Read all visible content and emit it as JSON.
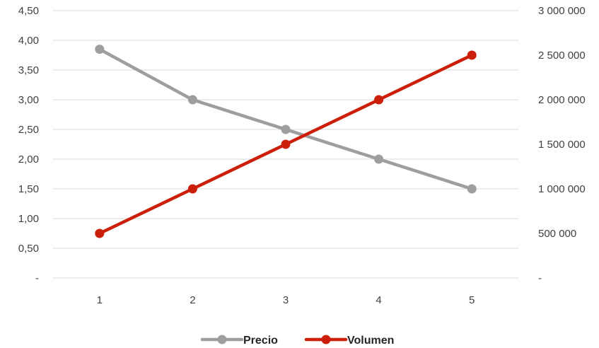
{
  "chart_data": {
    "type": "line",
    "x": [
      1,
      2,
      3,
      4,
      5
    ],
    "x_tick_labels": [
      "1",
      "2",
      "3",
      "4",
      "5"
    ],
    "y_left": {
      "ylim": [
        0,
        4.5
      ],
      "tick_values": [
        0,
        0.5,
        1,
        1.5,
        2,
        2.5,
        3,
        3.5,
        4,
        4.5
      ],
      "tick_labels": [
        "-",
        "0,50",
        "1,00",
        "1,50",
        "2,00",
        "2,50",
        "3,00",
        "3,50",
        "4,00",
        "4,50"
      ]
    },
    "y_right": {
      "ylim": [
        0,
        3000000
      ],
      "tick_values": [
        0,
        500000,
        1000000,
        1500000,
        2000000,
        2500000,
        3000000
      ],
      "tick_labels": [
        "-",
        "500 000",
        "1 000 000",
        "1 500 000",
        "2 000 000",
        "2 500 000",
        "3 000 000"
      ]
    },
    "series": [
      {
        "name": "Precio",
        "axis": "left",
        "color": "#9e9e9e",
        "values": [
          3.85,
          3.0,
          2.5,
          2.0,
          1.5
        ]
      },
      {
        "name": "Volumen",
        "axis": "right",
        "color": "#cc1f0a",
        "values": [
          500000,
          1000000,
          1500000,
          2000000,
          2500000
        ]
      }
    ],
    "grid": true,
    "legend_position": "bottom-center"
  }
}
